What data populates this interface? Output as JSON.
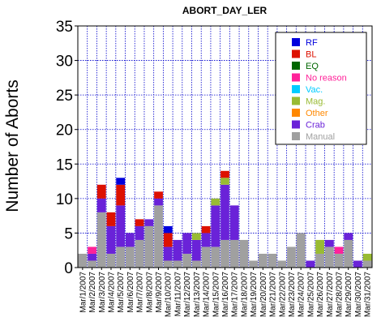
{
  "chart_data": {
    "type": "bar",
    "stacked": true,
    "title": "ABORT_DAY_LER",
    "xlabel": "",
    "ylabel": "Number of Aborts",
    "ylim": [
      0,
      35
    ],
    "yticks": [
      0,
      5,
      10,
      15,
      20,
      25,
      30,
      35
    ],
    "grid": true,
    "legend_position": "top-right",
    "categories": [
      "Mar/1/2007",
      "Mar/2/2007",
      "Mar/3/2007",
      "Mar/4/2007",
      "Mar/5/2007",
      "Mar/6/2007",
      "Mar/7/2007",
      "Mar/8/2007",
      "Mar/9/2007",
      "Mar/10/2007",
      "Mar/11/2007",
      "Mar/12/2007",
      "Mar/13/2007",
      "Mar/14/2007",
      "Mar/15/2007",
      "Mar/16/2007",
      "Mar/17/2007",
      "Mar/18/2007",
      "Mar/19/2007",
      "Mar/20/2007",
      "Mar/21/2007",
      "Mar/22/2007",
      "Mar/23/2007",
      "Mar/24/2007",
      "Mar/25/2007",
      "Mar/26/2007",
      "Mar/27/2007",
      "Mar/28/2007",
      "Mar/29/2007",
      "Mar/30/2007",
      "Mar/31/2007"
    ],
    "series": [
      {
        "name": "Manual",
        "color": "#a0a0a0",
        "values": [
          2,
          1,
          8,
          2,
          3,
          3,
          4,
          6,
          9,
          1,
          1,
          2,
          1,
          3,
          3,
          4,
          4,
          4,
          1,
          2,
          2,
          1,
          3,
          5,
          0,
          2,
          3,
          2,
          4,
          0,
          1
        ]
      },
      {
        "name": "Crab",
        "color": "#6a22d8",
        "values": [
          0,
          1,
          2,
          4,
          6,
          2,
          2,
          1,
          1,
          2,
          3,
          3,
          3,
          2,
          6,
          8,
          5,
          0,
          0,
          0,
          0,
          0,
          0,
          0,
          1,
          0,
          1,
          0,
          1,
          1,
          0
        ]
      },
      {
        "name": "Mag.",
        "color": "#99bb33",
        "values": [
          0,
          0,
          0,
          0,
          0,
          0,
          0,
          0,
          0,
          0,
          0,
          0,
          1,
          0,
          1,
          1,
          0,
          0,
          0,
          0,
          0,
          0,
          0,
          0,
          0,
          2,
          0,
          0,
          0,
          0,
          1
        ]
      },
      {
        "name": "Other",
        "color": "#ff8800",
        "values": [
          0,
          0,
          0,
          0,
          0,
          0,
          0,
          0,
          0,
          0,
          0,
          0,
          0,
          0,
          0,
          0,
          0,
          0,
          0,
          0,
          0,
          0,
          0,
          0,
          0,
          0,
          0,
          0,
          0,
          0,
          0
        ]
      },
      {
        "name": "Vac.",
        "color": "#00ccff",
        "values": [
          0,
          0,
          0,
          0,
          0,
          0,
          0,
          0,
          0,
          0,
          0,
          0,
          0,
          0,
          0,
          0,
          0,
          0,
          0,
          0,
          0,
          0,
          0,
          0,
          0,
          0,
          0,
          0,
          0,
          0,
          0
        ]
      },
      {
        "name": "No reason",
        "color": "#ff2299",
        "values": [
          0,
          1,
          0,
          0,
          0,
          0,
          0,
          0,
          0,
          0,
          0,
          0,
          0,
          0,
          0,
          0,
          0,
          0,
          0,
          0,
          0,
          0,
          0,
          0,
          0,
          0,
          0,
          1,
          0,
          0,
          0
        ]
      },
      {
        "name": "EQ",
        "color": "#006600",
        "values": [
          0,
          0,
          0,
          0,
          0,
          0,
          0,
          0,
          0,
          0,
          0,
          0,
          0,
          0,
          0,
          0,
          0,
          0,
          0,
          0,
          0,
          0,
          0,
          0,
          0,
          0,
          0,
          0,
          0,
          0,
          0
        ]
      },
      {
        "name": "BL",
        "color": "#dd1100",
        "values": [
          0,
          0,
          2,
          2,
          3,
          0,
          1,
          0,
          1,
          2,
          0,
          0,
          0,
          1,
          0,
          1,
          0,
          0,
          0,
          0,
          0,
          0,
          0,
          0,
          0,
          0,
          0,
          0,
          0,
          0,
          0
        ]
      },
      {
        "name": "RF",
        "color": "#0000dd",
        "values": [
          0,
          0,
          0,
          0,
          1,
          0,
          0,
          0,
          0,
          1,
          0,
          0,
          0,
          0,
          0,
          0,
          0,
          0,
          0,
          0,
          0,
          0,
          0,
          0,
          0,
          0,
          0,
          0,
          0,
          0,
          0
        ]
      }
    ],
    "legend_order": [
      "RF",
      "BL",
      "EQ",
      "No reason",
      "Vac.",
      "Mag.",
      "Other",
      "Crab",
      "Manual"
    ]
  }
}
